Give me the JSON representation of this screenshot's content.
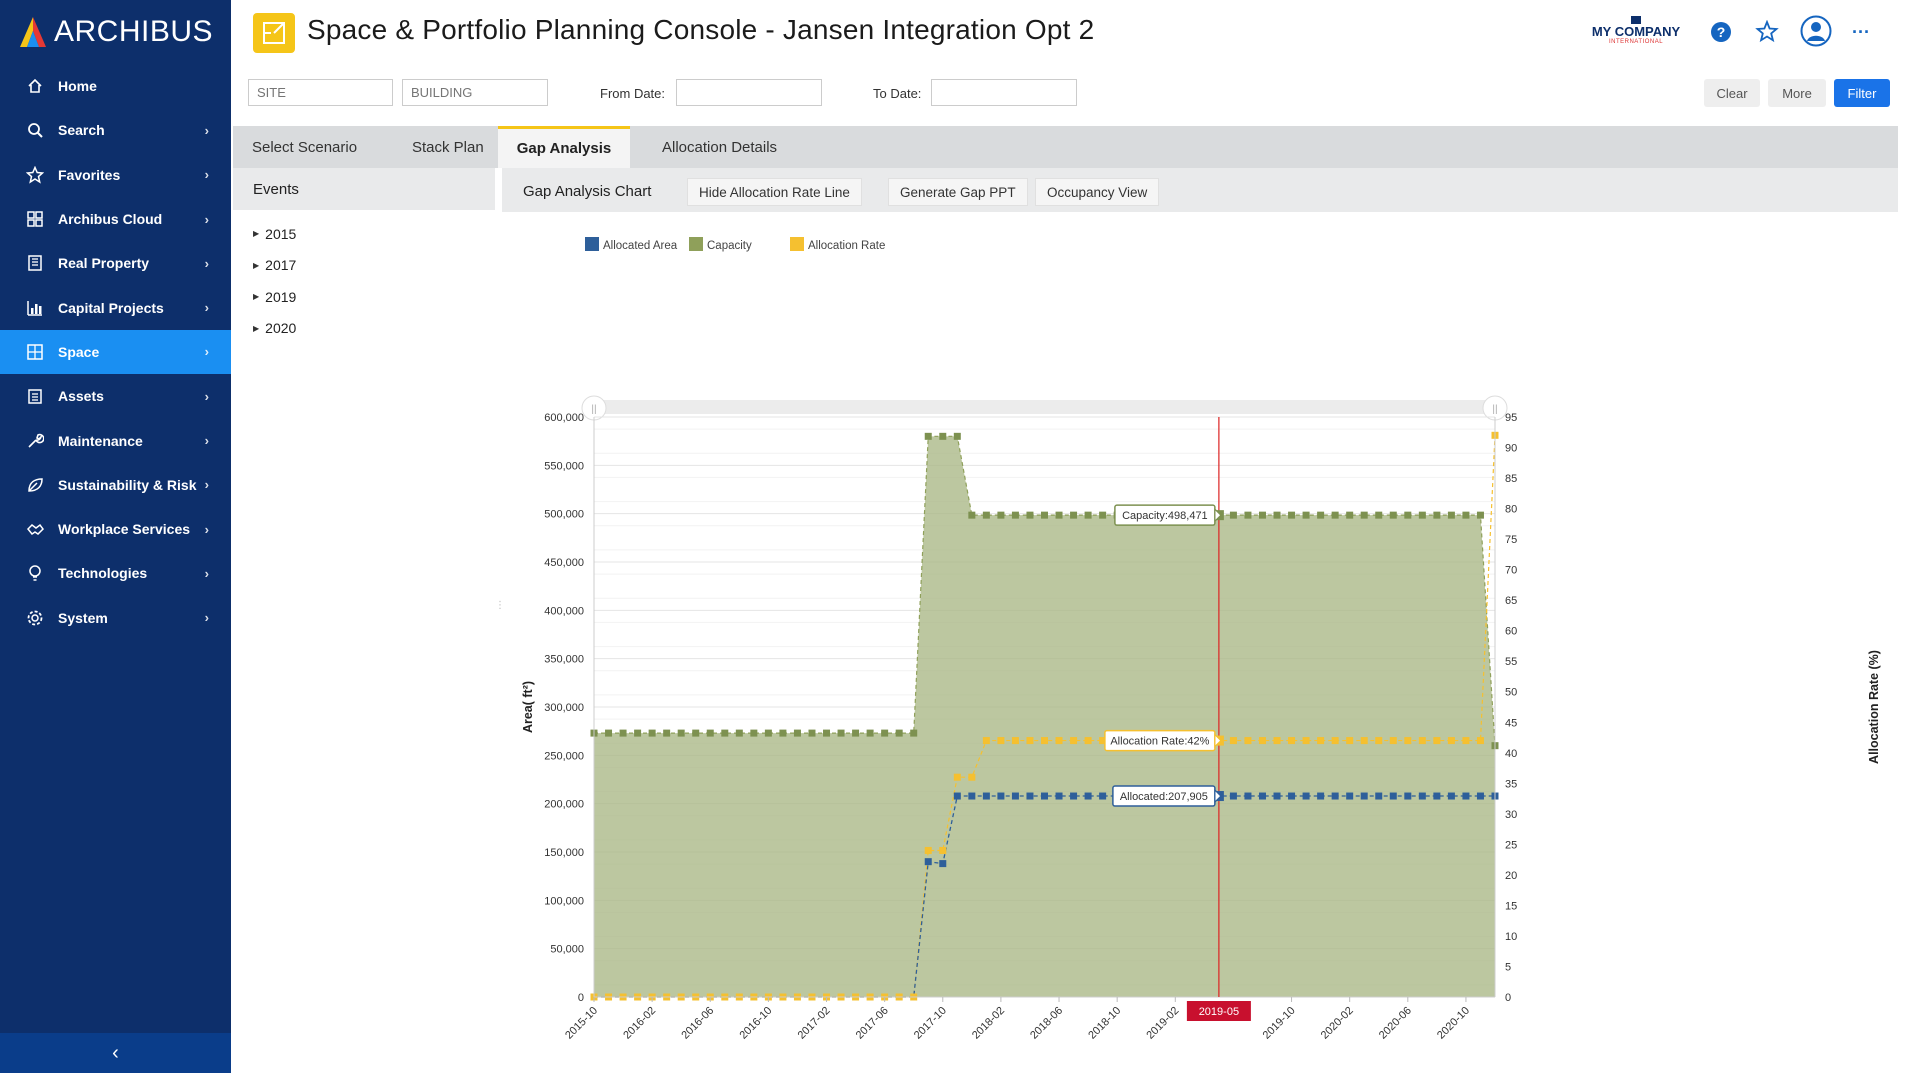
{
  "app": {
    "logo_text": "ARCHIBUS",
    "title": "Space & Portfolio Planning Console - Jansen Integration Opt 2",
    "company_name": "MY COMPANY",
    "company_sub": "INTERNATIONAL"
  },
  "sidebar": {
    "items": [
      {
        "label": "Home",
        "icon": "home-icon",
        "chevron": false,
        "active": false
      },
      {
        "label": "Search",
        "icon": "search-icon",
        "chevron": true,
        "active": false
      },
      {
        "label": "Favorites",
        "icon": "star-icon",
        "chevron": true,
        "active": false
      },
      {
        "label": "Archibus Cloud",
        "icon": "grid-icon",
        "chevron": true,
        "active": false
      },
      {
        "label": "Real Property",
        "icon": "building-icon",
        "chevron": true,
        "active": false
      },
      {
        "label": "Capital Projects",
        "icon": "chart-icon",
        "chevron": true,
        "active": false
      },
      {
        "label": "Space",
        "icon": "floorplan-icon",
        "chevron": true,
        "active": true
      },
      {
        "label": "Assets",
        "icon": "clipboard-icon",
        "chevron": true,
        "active": false
      },
      {
        "label": "Maintenance",
        "icon": "wrench-icon",
        "chevron": true,
        "active": false
      },
      {
        "label": "Sustainability & Risk",
        "icon": "leaf-icon",
        "chevron": true,
        "active": false
      },
      {
        "label": "Workplace Services",
        "icon": "handshake-icon",
        "chevron": true,
        "active": false
      },
      {
        "label": "Technologies",
        "icon": "lightbulb-icon",
        "chevron": true,
        "active": false
      },
      {
        "label": "System",
        "icon": "gear-icon",
        "chevron": true,
        "active": false
      }
    ],
    "collapse_glyph": "‹"
  },
  "filters": {
    "site_placeholder": "SITE",
    "building_placeholder": "BUILDING",
    "from_label": "From Date:",
    "to_label": "To Date:",
    "from_value": "",
    "to_value": "",
    "clear_label": "Clear",
    "more_label": "More",
    "filter_label": "Filter"
  },
  "tabs": [
    {
      "label": "Select Scenario",
      "active": false
    },
    {
      "label": "Stack Plan",
      "active": false
    },
    {
      "label": "Gap Analysis",
      "active": true
    },
    {
      "label": "Allocation Details",
      "active": false
    }
  ],
  "events": {
    "title": "Events",
    "years": [
      "2015",
      "2017",
      "2019",
      "2020"
    ]
  },
  "toolbar": {
    "title": "Gap Analysis Chart",
    "hide_rate_label": "Hide Allocation Rate Line",
    "gap_ppt_label": "Generate Gap PPT",
    "occupancy_label": "Occupancy View"
  },
  "chart_data": {
    "type": "line",
    "legend": [
      {
        "name": "Allocated Area",
        "color": "#2e5f9a"
      },
      {
        "name": "Capacity",
        "color": "#8fa05a"
      },
      {
        "name": "Allocation Rate",
        "color": "#f5c030"
      }
    ],
    "legend_position": "top-left",
    "ylabel_left": "Area( ft²)",
    "ylabel_right": "Allocation Rate (%)",
    "ylim_left": [
      0,
      600000
    ],
    "ylim_right": [
      0,
      95
    ],
    "yticks_left": [
      "0",
      "50,000",
      "100,000",
      "150,000",
      "200,000",
      "250,000",
      "300,000",
      "350,000",
      "400,000",
      "450,000",
      "500,000",
      "550,000",
      "600,000"
    ],
    "yticks_right": [
      "0",
      "5",
      "10",
      "15",
      "20",
      "25",
      "30",
      "35",
      "40",
      "45",
      "50",
      "55",
      "60",
      "65",
      "70",
      "75",
      "80",
      "85",
      "90",
      "95"
    ],
    "xticks": [
      "2015-10",
      "2016-02",
      "2016-06",
      "2016-10",
      "2017-02",
      "2017-06",
      "2017-10",
      "2018-02",
      "2018-06",
      "2018-10",
      "2019-02",
      "2019-10",
      "2020-02",
      "2020-06",
      "2020-10"
    ],
    "x_start": "2015-10",
    "n_months": 63,
    "capacity": [
      {
        "from": "2015-10",
        "to": "2017-08",
        "value": 273000
      },
      {
        "from": "2017-09",
        "to": "2017-11",
        "value": 580000
      },
      {
        "from": "2017-12",
        "to": "2020-11",
        "value": 498471
      },
      {
        "from": "2020-12",
        "to": "2020-12",
        "value": 260000
      }
    ],
    "allocated": [
      {
        "from": "2015-10",
        "to": "2017-08",
        "value": 0
      },
      {
        "from": "2017-09",
        "to": "2017-09",
        "value": 140000
      },
      {
        "from": "2017-10",
        "to": "2017-10",
        "value": 138000
      },
      {
        "from": "2017-11",
        "to": "2020-12",
        "value": 207905
      }
    ],
    "allocation_rate": [
      {
        "from": "2015-10",
        "to": "2017-08",
        "value": 0
      },
      {
        "from": "2017-09",
        "to": "2017-10",
        "value": 24
      },
      {
        "from": "2017-11",
        "to": "2017-12",
        "value": 36
      },
      {
        "from": "2018-01",
        "to": "2020-11",
        "value": 42
      },
      {
        "from": "2020-12",
        "to": "2020-12",
        "value": 92
      }
    ],
    "cursor": {
      "date": "2019-05",
      "capacity_label": "Capacity:498,471",
      "rate_label": "Allocation Rate:42%",
      "allocated_label": "Allocated:207,905"
    }
  }
}
